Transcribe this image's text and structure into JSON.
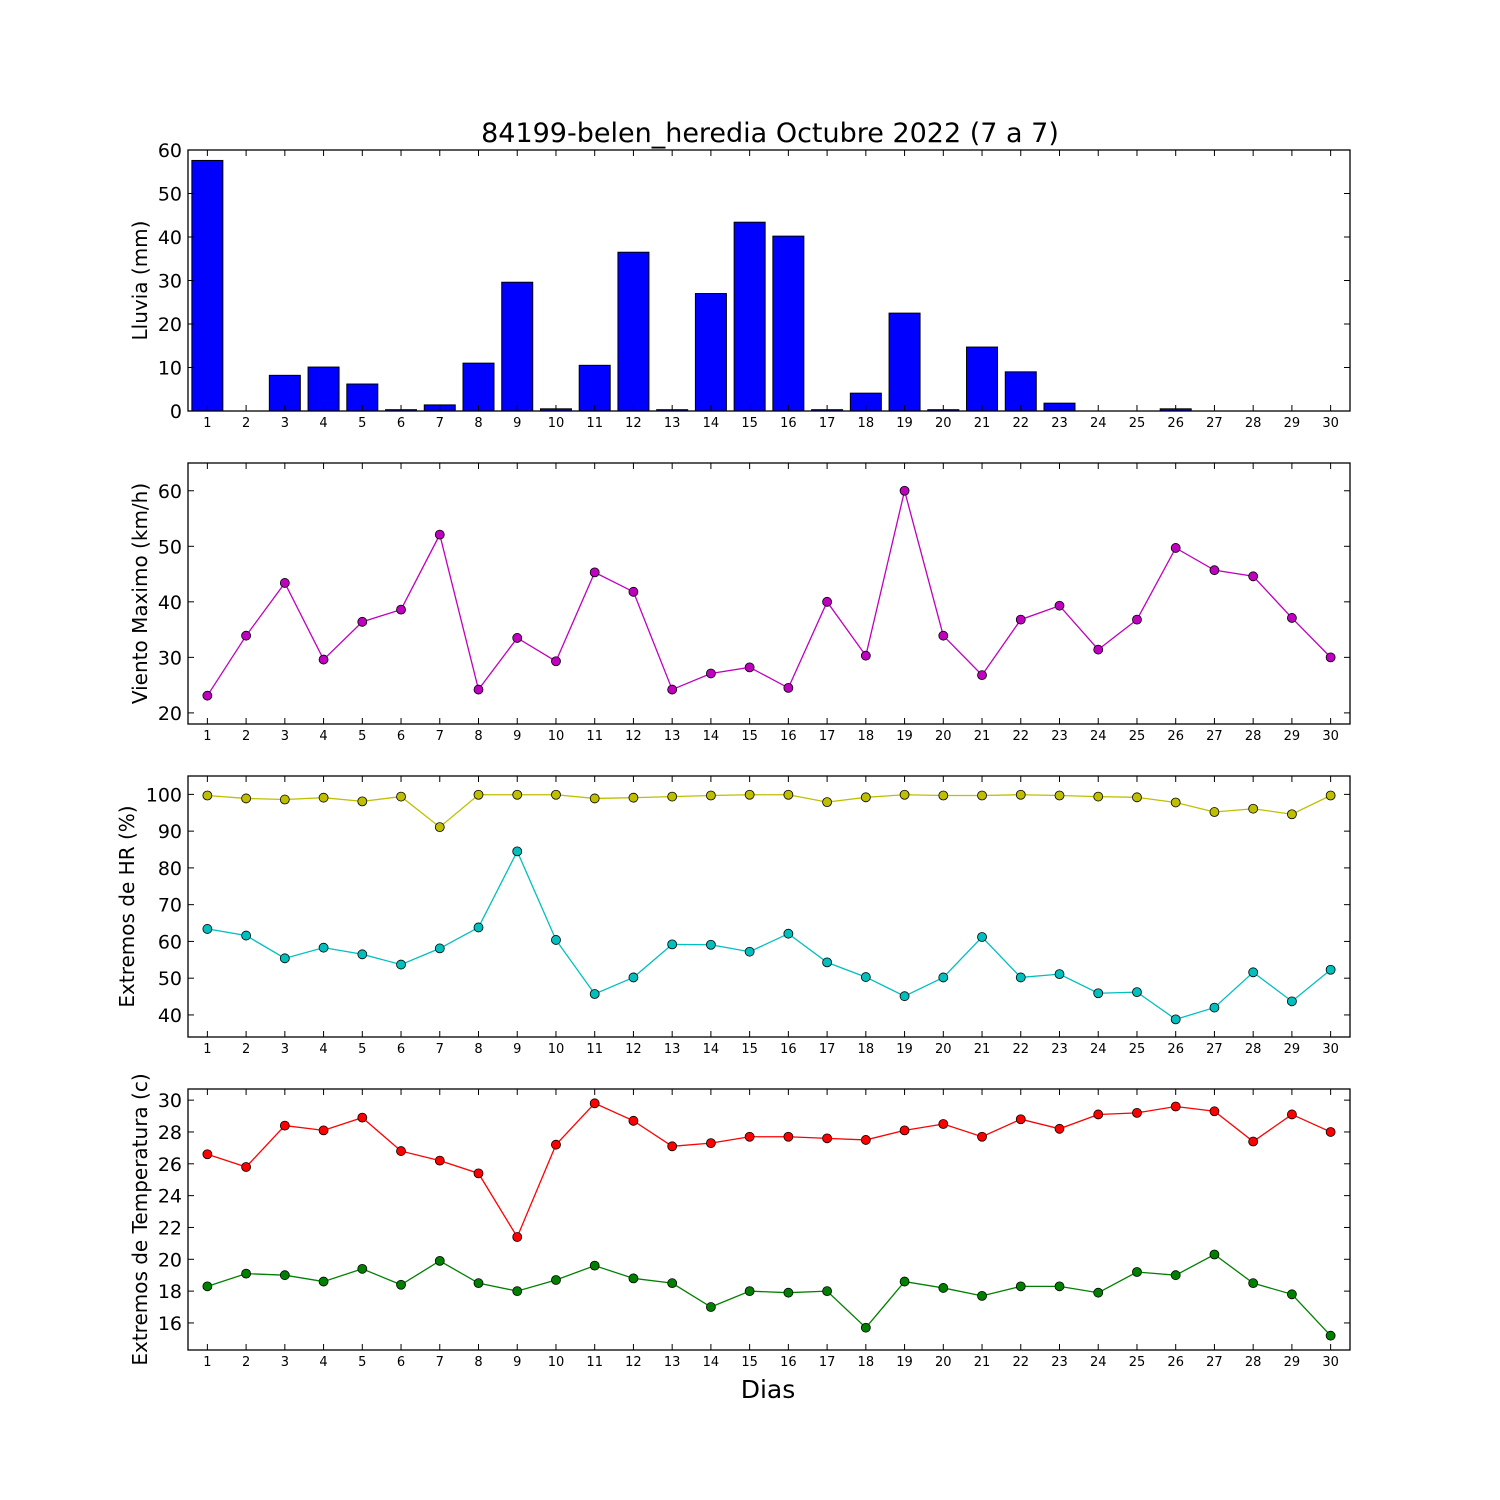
{
  "figure": {
    "title": "84199-belen_heredia Octubre 2022  (7 a 7)",
    "xlabel": "Dias"
  },
  "chart_data": [
    {
      "type": "bar",
      "ylabel": "Lluvia (mm)",
      "ylim": [
        0,
        60
      ],
      "yticks": [
        0,
        10,
        20,
        30,
        40,
        50,
        60
      ],
      "x": [
        1,
        2,
        3,
        4,
        5,
        6,
        7,
        8,
        9,
        10,
        11,
        12,
        13,
        14,
        15,
        16,
        17,
        18,
        19,
        20,
        21,
        22,
        23,
        24,
        25,
        26,
        27,
        28,
        29,
        30
      ],
      "xlim": [
        0.5,
        30.5
      ],
      "series": [
        {
          "color": "#0000ff",
          "values": [
            57.6,
            0,
            8.2,
            10.1,
            6.2,
            0.3,
            1.4,
            11,
            29.6,
            0.5,
            10.5,
            36.5,
            0.3,
            27,
            43.4,
            40.2,
            0.3,
            4.1,
            22.5,
            0.3,
            14.7,
            9,
            1.8,
            0,
            0,
            0.5,
            0,
            0,
            0,
            0
          ]
        }
      ]
    },
    {
      "type": "line",
      "ylabel": "Viento Maximo (km/h)",
      "ylim": [
        18,
        65
      ],
      "yticks": [
        20,
        30,
        40,
        50,
        60
      ],
      "x": [
        1,
        2,
        3,
        4,
        5,
        6,
        7,
        8,
        9,
        10,
        11,
        12,
        13,
        14,
        15,
        16,
        17,
        18,
        19,
        20,
        21,
        22,
        23,
        24,
        25,
        26,
        27,
        28,
        29,
        30
      ],
      "xlim": [
        0.5,
        30.5
      ],
      "series": [
        {
          "color": "#bf00bf",
          "values": [
            23.1,
            33.9,
            43.4,
            29.6,
            36.4,
            38.6,
            52.1,
            24.2,
            33.5,
            29.3,
            45.3,
            41.8,
            24.2,
            27.1,
            28.2,
            24.5,
            40,
            30.3,
            60,
            33.9,
            26.8,
            36.8,
            39.3,
            31.4,
            36.8,
            49.7,
            45.7,
            44.6,
            37.1,
            30
          ]
        }
      ]
    },
    {
      "type": "line",
      "ylabel": "Extremos de HR (%)",
      "ylim": [
        34,
        105
      ],
      "yticks": [
        40,
        50,
        60,
        70,
        80,
        90,
        100
      ],
      "x": [
        1,
        2,
        3,
        4,
        5,
        6,
        7,
        8,
        9,
        10,
        11,
        12,
        13,
        14,
        15,
        16,
        17,
        18,
        19,
        20,
        21,
        22,
        23,
        24,
        25,
        26,
        27,
        28,
        29,
        30
      ],
      "xlim": [
        0.5,
        30.5
      ],
      "series": [
        {
          "color": "#bfbf00",
          "values": [
            99.7,
            98.9,
            98.6,
            99.1,
            98.1,
            99.4,
            91.1,
            99.9,
            99.9,
            99.9,
            98.9,
            99.1,
            99.4,
            99.7,
            99.9,
            99.9,
            97.9,
            99.2,
            99.9,
            99.7,
            99.7,
            99.9,
            99.7,
            99.4,
            99.2,
            97.8,
            95.2,
            96.1,
            94.6,
            99.7
          ]
        },
        {
          "color": "#00bfbf",
          "values": [
            63.4,
            61.6,
            55.4,
            58.3,
            56.5,
            53.7,
            58.1,
            63.8,
            84.5,
            60.4,
            45.7,
            50.2,
            59.2,
            59.1,
            57.2,
            62.1,
            54.3,
            50.3,
            45.1,
            50.2,
            61.2,
            50.2,
            51.1,
            45.9,
            46.2,
            38.8,
            42,
            51.6,
            43.7,
            52.3
          ]
        }
      ]
    },
    {
      "type": "line",
      "ylabel": "Extremos de Temperatura (c)",
      "ylim": [
        14.3,
        30.7
      ],
      "yticks": [
        16,
        18,
        20,
        22,
        24,
        26,
        28,
        30
      ],
      "x": [
        1,
        2,
        3,
        4,
        5,
        6,
        7,
        8,
        9,
        10,
        11,
        12,
        13,
        14,
        15,
        16,
        17,
        18,
        19,
        20,
        21,
        22,
        23,
        24,
        25,
        26,
        27,
        28,
        29,
        30
      ],
      "xlim": [
        0.5,
        30.5
      ],
      "series": [
        {
          "color": "#ff0000",
          "values": [
            26.6,
            25.8,
            28.4,
            28.1,
            28.9,
            26.8,
            26.2,
            25.4,
            21.4,
            27.2,
            29.8,
            28.7,
            27.1,
            27.3,
            27.7,
            27.7,
            27.6,
            27.5,
            28.1,
            28.5,
            27.7,
            28.8,
            28.2,
            29.1,
            29.2,
            29.6,
            29.3,
            27.4,
            29.1,
            28
          ]
        },
        {
          "color": "#008000",
          "values": [
            18.3,
            19.1,
            19,
            18.6,
            19.4,
            18.4,
            19.9,
            18.5,
            18,
            18.7,
            19.6,
            18.8,
            18.5,
            17,
            18,
            17.9,
            18,
            15.7,
            18.6,
            18.2,
            17.7,
            18.3,
            18.3,
            17.9,
            19.2,
            19,
            20.3,
            18.5,
            17.8,
            15.2
          ]
        }
      ]
    }
  ]
}
